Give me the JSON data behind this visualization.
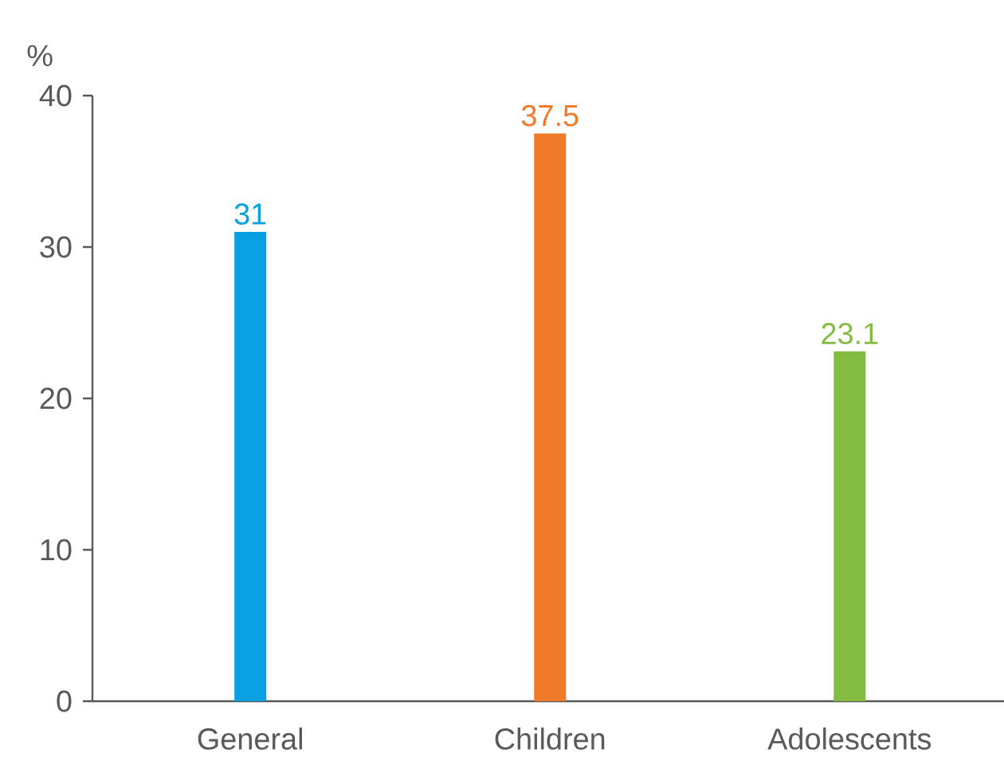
{
  "chart_data": {
    "type": "bar",
    "ylabel": "%",
    "categories": [
      "General",
      "Children",
      "Adolescents"
    ],
    "values": [
      31,
      37.5,
      23.1
    ],
    "colors": [
      "#0a9fe0",
      "#f07a2a",
      "#84bb41"
    ],
    "ylim": [
      0,
      40
    ],
    "yticks": [
      0,
      10,
      20,
      30,
      40
    ],
    "data_labels": true
  }
}
